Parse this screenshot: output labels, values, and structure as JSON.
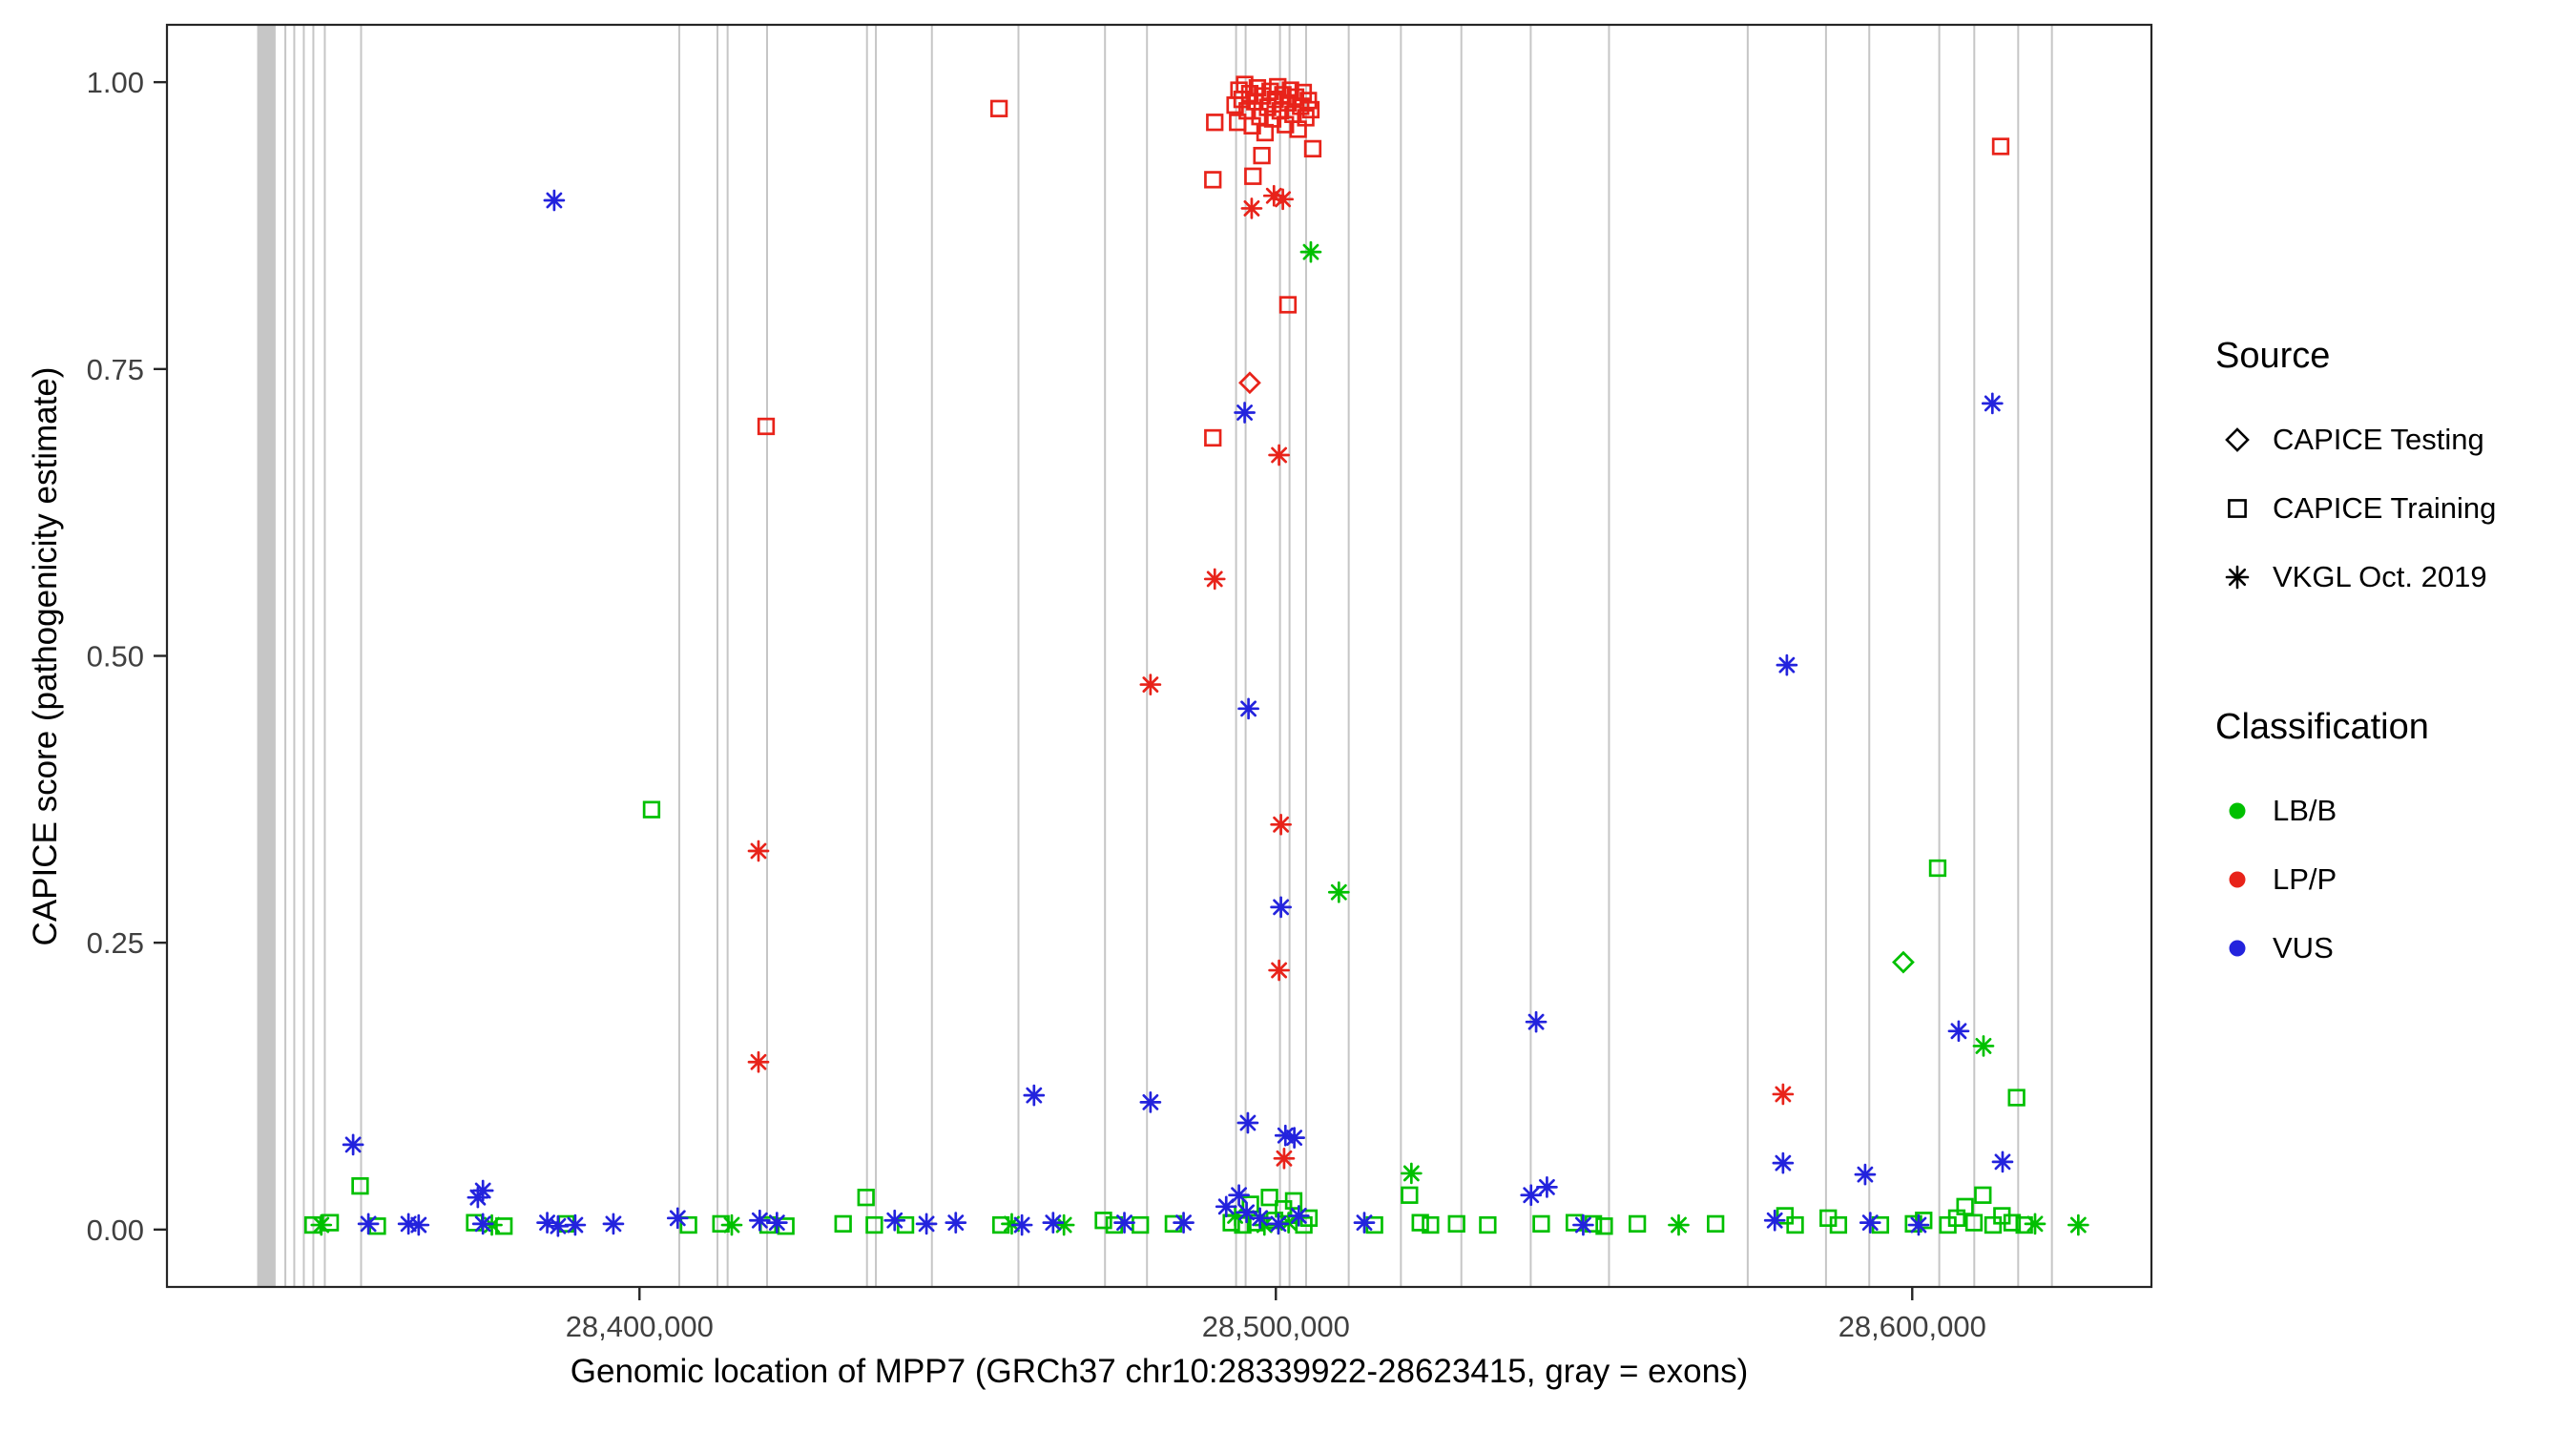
{
  "legend": {
    "source": {
      "title": "Source",
      "items": [
        {
          "label": "CAPICE Testing",
          "shape": "diamond"
        },
        {
          "label": "CAPICE Training",
          "shape": "square"
        },
        {
          "label": "VKGL Oct. 2019",
          "shape": "asterisk"
        }
      ]
    },
    "classification": {
      "title": "Classification",
      "items": [
        {
          "label": "LB/B",
          "color": "#00c000"
        },
        {
          "label": "LP/P",
          "color": "#e8231a"
        },
        {
          "label": "VUS",
          "color": "#2323dd"
        }
      ]
    }
  },
  "chart_data": {
    "type": "scatter",
    "xlabel": "Genomic location of MPP7 (GRCh37 chr10:28339922-28623415, gray = exons)",
    "ylabel": "CAPICE score (pathogenicity estimate)",
    "xlim": [
      28325747,
      28637590
    ],
    "ylim": [
      -0.05,
      1.05
    ],
    "grid": "off",
    "legend_position": "right",
    "x_ticks": [
      {
        "v": 28400000,
        "label": "28,400,000"
      },
      {
        "v": 28500000,
        "label": "28,500,000"
      },
      {
        "v": 28600000,
        "label": "28,600,000"
      }
    ],
    "y_ticks": [
      {
        "v": 0.0,
        "label": "0.00"
      },
      {
        "v": 0.25,
        "label": "0.25"
      },
      {
        "v": 0.5,
        "label": "0.50"
      },
      {
        "v": 0.75,
        "label": "0.75"
      },
      {
        "v": 1.0,
        "label": "1.00"
      }
    ],
    "style": {
      "exon_color": "#c6c6c6",
      "border_color": "#262626",
      "tick_color": "#262626",
      "tick_label_color": "#404040"
    },
    "colors": {
      "LB": "#00c000",
      "LP": "#e8231a",
      "VUS": "#2323dd"
    },
    "classification_codes": {
      "LB": "LB/B",
      "LP": "LP/P",
      "VUS": "VUS"
    },
    "source_codes": {
      "T": "CAPICE Testing",
      "R": "CAPICE Training",
      "V": "VKGL Oct. 2019"
    },
    "shape_by_source": {
      "T": "diamond",
      "R": "square",
      "V": "asterisk"
    },
    "exons": [
      [
        28339922,
        2900
      ],
      [
        28344200,
        300
      ],
      [
        28345600,
        300
      ],
      [
        28347100,
        300
      ],
      [
        28348600,
        300
      ],
      [
        28350400,
        300
      ],
      [
        28356100,
        300
      ],
      [
        28406100,
        300
      ],
      [
        28412100,
        300
      ],
      [
        28413700,
        300
      ],
      [
        28419900,
        300
      ],
      [
        28435600,
        300
      ],
      [
        28437000,
        300
      ],
      [
        28445800,
        300
      ],
      [
        28459400,
        300
      ],
      [
        28473000,
        300
      ],
      [
        28479600,
        300
      ],
      [
        28493600,
        300
      ],
      [
        28495100,
        300
      ],
      [
        28500500,
        300
      ],
      [
        28502000,
        300
      ],
      [
        28504600,
        300
      ],
      [
        28511300,
        300
      ],
      [
        28519500,
        300
      ],
      [
        28529000,
        300
      ],
      [
        28539900,
        300
      ],
      [
        28552200,
        300
      ],
      [
        28574000,
        300
      ],
      [
        28586300,
        300
      ],
      [
        28593100,
        300
      ],
      [
        28604100,
        300
      ],
      [
        28609600,
        300
      ],
      [
        28616500,
        300
      ],
      [
        28621800,
        300
      ]
    ],
    "point_format": [
      "position",
      "score",
      "classification",
      "source"
    ],
    "points": [
      [
        28493600,
        0.98,
        "LP",
        "R"
      ],
      [
        28494200,
        0.993,
        "LP",
        "R"
      ],
      [
        28494700,
        0.985,
        "LP",
        "R"
      ],
      [
        28495100,
        0.998,
        "LP",
        "R"
      ],
      [
        28495500,
        0.975,
        "LP",
        "R"
      ],
      [
        28495900,
        0.99,
        "LP",
        "R"
      ],
      [
        28496300,
        0.962,
        "LP",
        "R"
      ],
      [
        28496700,
        0.983,
        "LP",
        "R"
      ],
      [
        28497100,
        0.995,
        "LP",
        "R"
      ],
      [
        28497500,
        0.97,
        "LP",
        "R"
      ],
      [
        28497900,
        0.988,
        "LP",
        "R"
      ],
      [
        28498300,
        0.956,
        "LP",
        "R"
      ],
      [
        28498700,
        0.978,
        "LP",
        "R"
      ],
      [
        28499100,
        0.992,
        "LP",
        "R"
      ],
      [
        28499500,
        0.968,
        "LP",
        "R"
      ],
      [
        28499900,
        0.985,
        "LP",
        "R"
      ],
      [
        28500300,
        0.996,
        "LP",
        "R"
      ],
      [
        28500700,
        0.975,
        "LP",
        "R"
      ],
      [
        28501100,
        0.989,
        "LP",
        "R"
      ],
      [
        28501500,
        0.963,
        "LP",
        "R"
      ],
      [
        28501900,
        0.982,
        "LP",
        "R"
      ],
      [
        28502300,
        0.993,
        "LP",
        "R"
      ],
      [
        28502700,
        0.972,
        "LP",
        "R"
      ],
      [
        28503100,
        0.987,
        "LP",
        "R"
      ],
      [
        28503500,
        0.959,
        "LP",
        "R"
      ],
      [
        28503900,
        0.979,
        "LP",
        "R"
      ],
      [
        28504300,
        0.991,
        "LP",
        "R"
      ],
      [
        28504700,
        0.969,
        "LP",
        "R"
      ],
      [
        28505100,
        0.984,
        "LP",
        "R"
      ],
      [
        28505500,
        0.976,
        "LP",
        "R"
      ],
      [
        28496400,
        0.918,
        "LP",
        "R"
      ],
      [
        28497800,
        0.936,
        "LP",
        "R"
      ],
      [
        28505800,
        0.942,
        "LP",
        "R"
      ],
      [
        28494000,
        0.965,
        "LP",
        "R"
      ],
      [
        28490400,
        0.965,
        "LP",
        "R"
      ],
      [
        28490100,
        0.915,
        "LP",
        "R"
      ],
      [
        28456500,
        0.977,
        "LP",
        "R"
      ],
      [
        28613900,
        0.944,
        "LP",
        "R"
      ],
      [
        28419900,
        0.7,
        "LP",
        "R"
      ],
      [
        28490100,
        0.69,
        "LP",
        "R"
      ],
      [
        28501900,
        0.806,
        "LP",
        "R"
      ],
      [
        28496200,
        0.89,
        "LP",
        "V"
      ],
      [
        28499700,
        0.901,
        "LP",
        "V"
      ],
      [
        28501100,
        0.898,
        "LP",
        "V"
      ],
      [
        28500500,
        0.675,
        "LP",
        "V"
      ],
      [
        28490400,
        0.567,
        "LP",
        "V"
      ],
      [
        28480300,
        0.475,
        "LP",
        "V"
      ],
      [
        28500800,
        0.353,
        "LP",
        "V"
      ],
      [
        28418700,
        0.33,
        "LP",
        "V"
      ],
      [
        28500500,
        0.226,
        "LP",
        "V"
      ],
      [
        28418700,
        0.146,
        "LP",
        "V"
      ],
      [
        28579700,
        0.118,
        "LP",
        "V"
      ],
      [
        28501300,
        0.062,
        "LP",
        "V"
      ],
      [
        28495900,
        0.738,
        "LP",
        "T"
      ],
      [
        28598600,
        0.233,
        "LB",
        "T"
      ],
      [
        28505500,
        0.852,
        "LB",
        "V"
      ],
      [
        28509900,
        0.294,
        "LB",
        "V"
      ],
      [
        28611200,
        0.16,
        "LB",
        "V"
      ],
      [
        28521300,
        0.049,
        "LB",
        "V"
      ],
      [
        28350000,
        0.004,
        "LB",
        "V"
      ],
      [
        28376800,
        0.004,
        "LB",
        "V"
      ],
      [
        28414500,
        0.004,
        "LB",
        "V"
      ],
      [
        28458500,
        0.005,
        "LB",
        "V"
      ],
      [
        28466700,
        0.004,
        "LB",
        "V"
      ],
      [
        28493600,
        0.012,
        "LB",
        "V"
      ],
      [
        28498200,
        0.004,
        "LB",
        "V"
      ],
      [
        28502000,
        0.006,
        "LB",
        "V"
      ],
      [
        28563300,
        0.004,
        "LB",
        "V"
      ],
      [
        28619300,
        0.005,
        "LB",
        "V"
      ],
      [
        28626100,
        0.004,
        "LB",
        "V"
      ],
      [
        28401900,
        0.366,
        "LB",
        "R"
      ],
      [
        28604000,
        0.315,
        "LB",
        "R"
      ],
      [
        28616400,
        0.115,
        "LB",
        "R"
      ],
      [
        28356100,
        0.038,
        "LB",
        "R"
      ],
      [
        28521000,
        0.03,
        "LB",
        "R"
      ],
      [
        28435600,
        0.028,
        "LB",
        "R"
      ],
      [
        28348700,
        0.004,
        "LB",
        "R"
      ],
      [
        28351400,
        0.006,
        "LB",
        "R"
      ],
      [
        28358800,
        0.003,
        "LB",
        "R"
      ],
      [
        28374100,
        0.006,
        "LB",
        "R"
      ],
      [
        28378700,
        0.003,
        "LB",
        "R"
      ],
      [
        28388500,
        0.005,
        "LB",
        "R"
      ],
      [
        28407700,
        0.004,
        "LB",
        "R"
      ],
      [
        28412800,
        0.005,
        "LB",
        "R"
      ],
      [
        28420200,
        0.004,
        "LB",
        "R"
      ],
      [
        28423000,
        0.003,
        "LB",
        "R"
      ],
      [
        28432000,
        0.005,
        "LB",
        "R"
      ],
      [
        28436900,
        0.004,
        "LB",
        "R"
      ],
      [
        28441800,
        0.004,
        "LB",
        "R"
      ],
      [
        28456800,
        0.004,
        "LB",
        "R"
      ],
      [
        28472900,
        0.008,
        "LB",
        "R"
      ],
      [
        28474600,
        0.004,
        "LB",
        "R"
      ],
      [
        28478700,
        0.004,
        "LB",
        "R"
      ],
      [
        28483900,
        0.005,
        "LB",
        "R"
      ],
      [
        28493000,
        0.006,
        "LB",
        "R"
      ],
      [
        28494800,
        0.004,
        "LB",
        "R"
      ],
      [
        28496000,
        0.022,
        "LB",
        "R"
      ],
      [
        28496800,
        0.006,
        "LB",
        "R"
      ],
      [
        28499000,
        0.028,
        "LB",
        "R"
      ],
      [
        28499800,
        0.008,
        "LB",
        "R"
      ],
      [
        28501200,
        0.018,
        "LB",
        "R"
      ],
      [
        28502800,
        0.025,
        "LB",
        "R"
      ],
      [
        28504400,
        0.004,
        "LB",
        "R"
      ],
      [
        28505200,
        0.01,
        "LB",
        "R"
      ],
      [
        28515500,
        0.004,
        "LB",
        "R"
      ],
      [
        28522700,
        0.006,
        "LB",
        "R"
      ],
      [
        28524300,
        0.004,
        "LB",
        "R"
      ],
      [
        28528400,
        0.005,
        "LB",
        "R"
      ],
      [
        28533300,
        0.004,
        "LB",
        "R"
      ],
      [
        28541700,
        0.005,
        "LB",
        "R"
      ],
      [
        28546900,
        0.006,
        "LB",
        "R"
      ],
      [
        28549900,
        0.005,
        "LB",
        "R"
      ],
      [
        28551600,
        0.003,
        "LB",
        "R"
      ],
      [
        28556800,
        0.005,
        "LB",
        "R"
      ],
      [
        28569100,
        0.005,
        "LB",
        "R"
      ],
      [
        28580000,
        0.012,
        "LB",
        "R"
      ],
      [
        28581600,
        0.004,
        "LB",
        "R"
      ],
      [
        28586800,
        0.01,
        "LB",
        "R"
      ],
      [
        28588400,
        0.004,
        "LB",
        "R"
      ],
      [
        28595000,
        0.004,
        "LB",
        "R"
      ],
      [
        28600200,
        0.005,
        "LB",
        "R"
      ],
      [
        28601800,
        0.008,
        "LB",
        "R"
      ],
      [
        28605600,
        0.004,
        "LB",
        "R"
      ],
      [
        28607000,
        0.01,
        "LB",
        "R"
      ],
      [
        28608300,
        0.02,
        "LB",
        "R"
      ],
      [
        28609700,
        0.006,
        "LB",
        "R"
      ],
      [
        28611100,
        0.03,
        "LB",
        "R"
      ],
      [
        28612700,
        0.004,
        "LB",
        "R"
      ],
      [
        28614100,
        0.012,
        "LB",
        "R"
      ],
      [
        28615700,
        0.006,
        "LB",
        "R"
      ],
      [
        28617600,
        0.004,
        "LB",
        "R"
      ],
      [
        28386600,
        0.897,
        "VUS",
        "V"
      ],
      [
        28612600,
        0.72,
        "VUS",
        "V"
      ],
      [
        28495100,
        0.712,
        "VUS",
        "V"
      ],
      [
        28580300,
        0.492,
        "VUS",
        "V"
      ],
      [
        28495700,
        0.454,
        "VUS",
        "V"
      ],
      [
        28500800,
        0.281,
        "VUS",
        "V"
      ],
      [
        28540900,
        0.181,
        "VUS",
        "V"
      ],
      [
        28607300,
        0.173,
        "VUS",
        "V"
      ],
      [
        28462000,
        0.117,
        "VUS",
        "V"
      ],
      [
        28480300,
        0.111,
        "VUS",
        "V"
      ],
      [
        28495600,
        0.093,
        "VUS",
        "V"
      ],
      [
        28501500,
        0.082,
        "VUS",
        "V"
      ],
      [
        28502900,
        0.08,
        "VUS",
        "V"
      ],
      [
        28355000,
        0.074,
        "VUS",
        "V"
      ],
      [
        28614200,
        0.059,
        "VUS",
        "V"
      ],
      [
        28579700,
        0.058,
        "VUS",
        "V"
      ],
      [
        28592600,
        0.048,
        "VUS",
        "V"
      ],
      [
        28542600,
        0.037,
        "VUS",
        "V"
      ],
      [
        28375400,
        0.034,
        "VUS",
        "V"
      ],
      [
        28540100,
        0.03,
        "VUS",
        "V"
      ],
      [
        28494200,
        0.03,
        "VUS",
        "V"
      ],
      [
        28374600,
        0.028,
        "VUS",
        "V"
      ],
      [
        28492200,
        0.02,
        "VUS",
        "V"
      ],
      [
        28495400,
        0.015,
        "VUS",
        "V"
      ],
      [
        28503600,
        0.012,
        "VUS",
        "V"
      ],
      [
        28406000,
        0.01,
        "VUS",
        "V"
      ],
      [
        28440100,
        0.008,
        "VUS",
        "V"
      ],
      [
        28418900,
        0.008,
        "VUS",
        "V"
      ],
      [
        28578400,
        0.008,
        "VUS",
        "V"
      ],
      [
        28357400,
        0.005,
        "VUS",
        "V"
      ],
      [
        28363700,
        0.005,
        "VUS",
        "V"
      ],
      [
        28365300,
        0.004,
        "VUS",
        "V"
      ],
      [
        28375400,
        0.005,
        "VUS",
        "V"
      ],
      [
        28385500,
        0.006,
        "VUS",
        "V"
      ],
      [
        28387200,
        0.003,
        "VUS",
        "V"
      ],
      [
        28389900,
        0.004,
        "VUS",
        "V"
      ],
      [
        28395900,
        0.005,
        "VUS",
        "V"
      ],
      [
        28421600,
        0.006,
        "VUS",
        "V"
      ],
      [
        28445100,
        0.005,
        "VUS",
        "V"
      ],
      [
        28449700,
        0.006,
        "VUS",
        "V"
      ],
      [
        28460100,
        0.004,
        "VUS",
        "V"
      ],
      [
        28465000,
        0.006,
        "VUS",
        "V"
      ],
      [
        28476200,
        0.006,
        "VUS",
        "V"
      ],
      [
        28485500,
        0.006,
        "VUS",
        "V"
      ],
      [
        28497500,
        0.01,
        "VUS",
        "V"
      ],
      [
        28500400,
        0.005,
        "VUS",
        "V"
      ],
      [
        28513900,
        0.006,
        "VUS",
        "V"
      ],
      [
        28548300,
        0.004,
        "VUS",
        "V"
      ],
      [
        28593400,
        0.006,
        "VUS",
        "V"
      ],
      [
        28601000,
        0.004,
        "VUS",
        "V"
      ]
    ]
  }
}
